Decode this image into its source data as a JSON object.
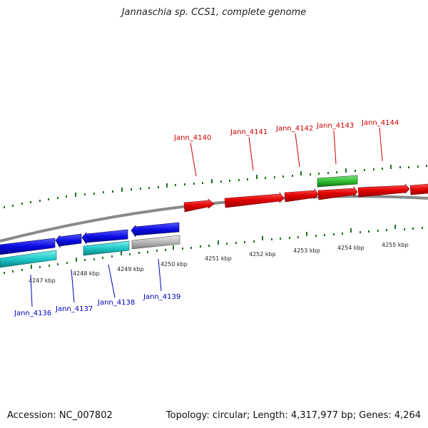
{
  "title": "Jannaschia sp. CCS1, complete genome",
  "footer": {
    "accession": "Accession: NC_007802",
    "summary": "Topology: circular; Length: 4,317,977 bp; Genes: 4,264"
  },
  "scale_labels": [
    "4247 kbp",
    "4248 kbp",
    "4249 kbp",
    "4250 kbp",
    "4251 kbp",
    "4252 kbp",
    "4253 kbp",
    "4254 kbp",
    "4255 kbp"
  ],
  "forward_genes": [
    "Jann_4140",
    "Jann_4141",
    "Jann_4142",
    "Jann_4143",
    "Jann_4144"
  ],
  "reverse_genes": [
    "Jann_4136",
    "Jann_4137",
    "Jann_4138",
    "Jann_4139"
  ],
  "colors": {
    "forward": "#e00000",
    "reverse": "#0a0ae0",
    "cyan": "#20c8c8",
    "green": "#30c030",
    "grey": "#b8b8b8",
    "tick": "#207020",
    "backbone": "#8a8a8a"
  }
}
